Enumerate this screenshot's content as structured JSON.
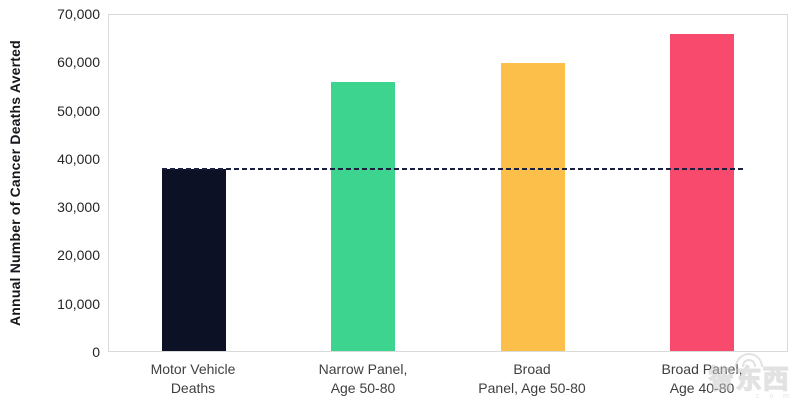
{
  "chart_data": {
    "type": "bar",
    "title": "",
    "ylabel": "Annual Number of Cancer Deaths Averted",
    "xlabel": "",
    "ylim": [
      0,
      70000
    ],
    "ytick_step": 10000,
    "ytick_labels": [
      "0",
      "10,000",
      "20,000",
      "30,000",
      "40,000",
      "50,000",
      "60,000",
      "70,000"
    ],
    "categories": [
      "Motor Vehicle Deaths",
      "Narrow Panel, Age 50-80",
      "Broad Panel, Age 50-80",
      "Broad Panel, Age 40-80"
    ],
    "category_label_lines": [
      [
        "Motor Vehicle",
        "Deaths"
      ],
      [
        "Narrow Panel,",
        "Age 50-80"
      ],
      [
        "Broad",
        "Panel, Age 50-80"
      ],
      [
        "Broad Panel,",
        "Age 40-80"
      ]
    ],
    "values": [
      38000,
      56000,
      60000,
      66000
    ],
    "bar_colors": [
      "#0d1126",
      "#3dd48f",
      "#fcbf4a",
      "#f74a6d"
    ],
    "reference_line": {
      "value": 38000,
      "style": "dashed",
      "color": "#1b2040"
    },
    "grid": false,
    "legend": null,
    "axis_border_color": "#d9d9d9"
  },
  "watermark": {
    "text": "智东西",
    "subtext": "c o m"
  }
}
